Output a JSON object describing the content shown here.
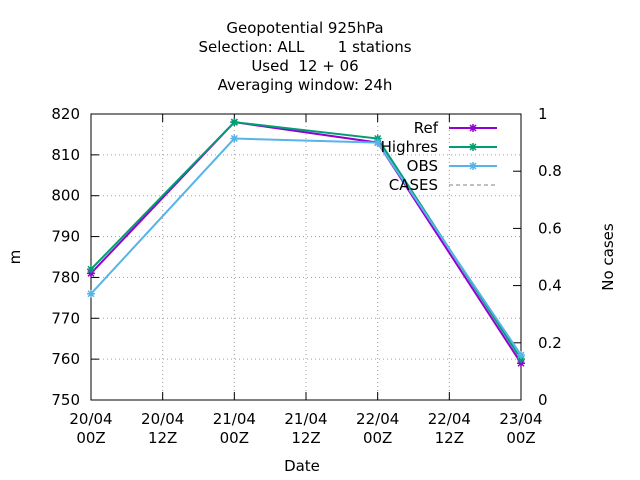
{
  "chart_data": {
    "type": "line",
    "title_lines": [
      "Geopotential 925hPa",
      "Selection: ALL       1 stations",
      "Used  12 + 06",
      "Averaging window: 24h"
    ],
    "xlabel": "Date",
    "ylabel": "m",
    "y2label": "No cases",
    "x_ticks": [
      {
        "x": 0,
        "line1": "20/04",
        "line2": "00Z"
      },
      {
        "x": 12,
        "line1": "20/04",
        "line2": "12Z"
      },
      {
        "x": 24,
        "line1": "21/04",
        "line2": "00Z"
      },
      {
        "x": 36,
        "line1": "21/04",
        "line2": "12Z"
      },
      {
        "x": 48,
        "line1": "22/04",
        "line2": "00Z"
      },
      {
        "x": 60,
        "line1": "22/04",
        "line2": "12Z"
      },
      {
        "x": 72,
        "line1": "23/04",
        "line2": "00Z"
      }
    ],
    "xlim": [
      0,
      72
    ],
    "ylim": [
      750,
      820
    ],
    "y_ticks": [
      750,
      760,
      770,
      780,
      790,
      800,
      810,
      820
    ],
    "y2lim": [
      0,
      1
    ],
    "y2_ticks": [
      "0",
      "0.2",
      "0.4",
      "0.6",
      "0.8",
      "1"
    ],
    "grid": true,
    "legend_position": "top-right",
    "series": [
      {
        "name": "Ref",
        "color": "#9400d3",
        "x": [
          0,
          24,
          48,
          72
        ],
        "values": [
          781,
          818,
          813,
          759
        ]
      },
      {
        "name": "Highres",
        "color": "#009e73",
        "x": [
          0,
          24,
          48,
          72
        ],
        "values": [
          782,
          818,
          814,
          760
        ]
      },
      {
        "name": "OBS",
        "color": "#56b4e9",
        "x": [
          0,
          24,
          48,
          72
        ],
        "values": [
          776,
          814,
          813,
          761
        ]
      },
      {
        "name": "CASES",
        "color": "#808080",
        "dashed": true,
        "x": [],
        "values": []
      }
    ]
  }
}
